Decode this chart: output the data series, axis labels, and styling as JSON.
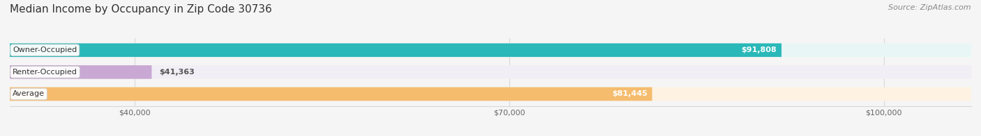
{
  "title": "Median Income by Occupancy in Zip Code 30736",
  "source": "Source: ZipAtlas.com",
  "categories": [
    "Owner-Occupied",
    "Renter-Occupied",
    "Average"
  ],
  "values": [
    91808,
    41363,
    81445
  ],
  "labels": [
    "$91,808",
    "$41,363",
    "$81,445"
  ],
  "bar_colors": [
    "#2ab8b8",
    "#c9a8d4",
    "#f5bc6e"
  ],
  "bar_bg_colors": [
    "#e8f6f6",
    "#f2eef6",
    "#fef3e2"
  ],
  "xlim": [
    30000,
    107000
  ],
  "xticks": [
    40000,
    70000,
    100000
  ],
  "xticklabels": [
    "$40,000",
    "$70,000",
    "$100,000"
  ],
  "title_fontsize": 11,
  "source_fontsize": 8,
  "label_fontsize": 8,
  "bar_height": 0.62,
  "background_color": "#f5f5f5",
  "grid_color": "#d8d8d8"
}
